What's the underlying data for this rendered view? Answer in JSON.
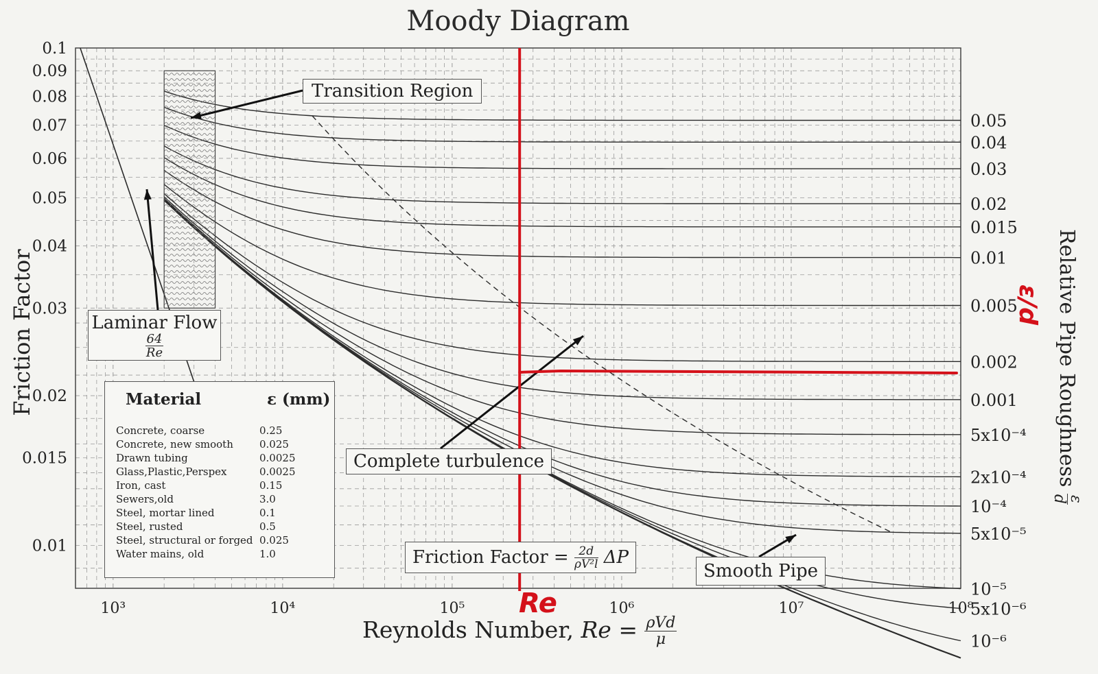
{
  "title": "Moody Diagram",
  "y_axis_title": "Friction Factor",
  "x_axis_title": {
    "prefix": "Reynolds Number, ",
    "re": "Re",
    "equals": " = ",
    "num": "ρVd",
    "den": "μ"
  },
  "right_axis_title": {
    "text": "Relative Pipe Roughness",
    "num": "ε",
    "den": "d"
  },
  "chart_data": {
    "type": "line",
    "title": "Moody Diagram",
    "xlabel": "Reynolds Number, Re = ρVd/μ",
    "ylabel": "Friction Factor",
    "right_label": "Relative Pipe Roughness ε/d",
    "x_scale": "log",
    "y_scale": "log",
    "xlim": [
      600,
      100000000
    ],
    "ylim": [
      0.0082,
      0.1
    ],
    "grid": true,
    "x_ticks": [
      {
        "value": 1000,
        "label": "10³"
      },
      {
        "value": 10000,
        "label": "10⁴"
      },
      {
        "value": 100000,
        "label": "10⁵"
      },
      {
        "value": 1000000,
        "label": "10⁶"
      },
      {
        "value": 10000000,
        "label": "10⁷"
      },
      {
        "value": 100000000,
        "label": "10⁸"
      }
    ],
    "y_ticks": [
      {
        "value": 0.1,
        "label": "0.1"
      },
      {
        "value": 0.09,
        "label": "0.09"
      },
      {
        "value": 0.08,
        "label": "0.08"
      },
      {
        "value": 0.07,
        "label": "0.07"
      },
      {
        "value": 0.06,
        "label": "0.06"
      },
      {
        "value": 0.05,
        "label": "0.05"
      },
      {
        "value": 0.04,
        "label": "0.04"
      },
      {
        "value": 0.03,
        "label": "0.03"
      },
      {
        "value": 0.02,
        "label": "0.02"
      },
      {
        "value": 0.015,
        "label": "0.015"
      },
      {
        "value": 0.01,
        "label": "0.01"
      }
    ],
    "series": [
      {
        "roughness": 0.05,
        "label": "0.05"
      },
      {
        "roughness": 0.04,
        "label": "0.04"
      },
      {
        "roughness": 0.03,
        "label": "0.03"
      },
      {
        "roughness": 0.02,
        "label": "0.02"
      },
      {
        "roughness": 0.015,
        "label": "0.015"
      },
      {
        "roughness": 0.01,
        "label": "0.01"
      },
      {
        "roughness": 0.005,
        "label": "0.005"
      },
      {
        "roughness": 0.002,
        "label": "0.002"
      },
      {
        "roughness": 0.001,
        "label": "0.001"
      },
      {
        "roughness": 0.0005,
        "label": "5x10⁻⁴"
      },
      {
        "roughness": 0.0002,
        "label": "2x10⁻⁴"
      },
      {
        "roughness": 0.0001,
        "label": "10⁻⁴"
      },
      {
        "roughness": 5e-05,
        "label": "5x10⁻⁵"
      },
      {
        "roughness": 1e-05,
        "label": "10⁻⁵"
      },
      {
        "roughness": 5e-06,
        "label": "5x10⁻⁶"
      },
      {
        "roughness": 1e-06,
        "label": "10⁻⁶"
      },
      {
        "roughness": 0,
        "label": "Smooth Pipe"
      }
    ],
    "laminar": {
      "label": "Laminar Flow",
      "formula_num": "64",
      "formula_den": "Re",
      "x_range": [
        640,
        3200
      ]
    },
    "transition_region": {
      "label": "Transition Region",
      "x_range": [
        2000,
        4000
      ]
    },
    "complete_turbulence_label": "Complete turbulence",
    "smooth_pipe_label": "Smooth Pipe",
    "friction_formula": {
      "prefix": "Friction Factor = ",
      "num": "2d",
      "den": "ρV²l",
      "suffix": "ΔP"
    },
    "annotations": {
      "re_line_x": 250000,
      "relative_roughness_line": 0.0015,
      "re_label": "Re",
      "ed_label": "ε/d"
    }
  },
  "material_table": {
    "headers": [
      "Material",
      "ε (mm)"
    ],
    "rows": [
      [
        "Concrete, coarse",
        "0.25"
      ],
      [
        "Concrete, new smooth",
        "0.025"
      ],
      [
        "Drawn tubing",
        "0.0025"
      ],
      [
        "Glass,Plastic,Perspex",
        "0.0025"
      ],
      [
        "Iron, cast",
        "0.15"
      ],
      [
        "Sewers,old",
        "3.0"
      ],
      [
        "Steel, mortar lined",
        "0.1"
      ],
      [
        "Steel, rusted",
        "0.5"
      ],
      [
        "Steel, structural or forged",
        "0.025"
      ],
      [
        "Water mains, old",
        "1.0"
      ]
    ]
  },
  "colors": {
    "curve": "#2b2b2b",
    "grid": "#9a9a9a",
    "annotation_red": "#d4111a",
    "frame": "#444444"
  }
}
